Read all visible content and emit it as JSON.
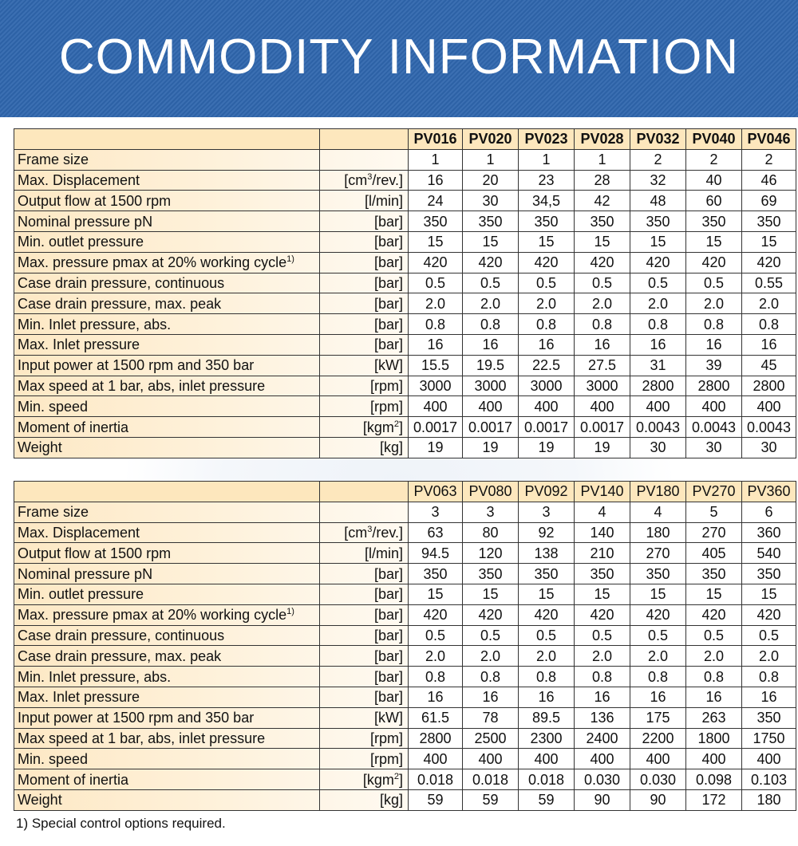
{
  "banner": {
    "title": "COMMODITY INFORMATION"
  },
  "table1": {
    "models": [
      "PV016",
      "PV020",
      "PV023",
      "PV028",
      "PV032",
      "PV040",
      "PV046"
    ],
    "rows": [
      {
        "label": "Frame size",
        "sup": "",
        "unit": "",
        "unit_sup": "",
        "unit_tail": "",
        "values": [
          "1",
          "1",
          "1",
          "1",
          "2",
          "2",
          "2"
        ]
      },
      {
        "label": "Max. Displacement",
        "sup": "",
        "unit": "[cm",
        "unit_sup": "3",
        "unit_tail": "/rev.]",
        "values": [
          "16",
          "20",
          "23",
          "28",
          "32",
          "40",
          "46"
        ]
      },
      {
        "label": "Output flow at 1500 rpm",
        "sup": "",
        "unit": "[l/min]",
        "unit_sup": "",
        "unit_tail": "",
        "values": [
          "24",
          "30",
          "34,5",
          "42",
          "48",
          "60",
          "69"
        ]
      },
      {
        "label": "Nominal pressure pN",
        "sup": "",
        "unit": "[bar]",
        "unit_sup": "",
        "unit_tail": "",
        "values": [
          "350",
          "350",
          "350",
          "350",
          "350",
          "350",
          "350"
        ]
      },
      {
        "label": "Min. outlet pressure",
        "sup": "",
        "unit": "[bar]",
        "unit_sup": "",
        "unit_tail": "",
        "values": [
          "15",
          "15",
          "15",
          "15",
          "15",
          "15",
          "15"
        ]
      },
      {
        "label": "Max. pressure pmax at 20% working cycle",
        "sup": "1)",
        "unit": "[bar]",
        "unit_sup": "",
        "unit_tail": "",
        "values": [
          "420",
          "420",
          "420",
          "420",
          "420",
          "420",
          "420"
        ]
      },
      {
        "label": "Case drain pressure, continuous",
        "sup": "",
        "unit": "[bar]",
        "unit_sup": "",
        "unit_tail": "",
        "values": [
          "0.5",
          "0.5",
          "0.5",
          "0.5",
          "0.5",
          "0.5",
          "0.55"
        ]
      },
      {
        "label": "Case drain pressure, max. peak",
        "sup": "",
        "unit": "[bar]",
        "unit_sup": "",
        "unit_tail": "",
        "values": [
          "2.0",
          "2.0",
          "2.0",
          "2.0",
          "2.0",
          "2.0",
          "2.0"
        ]
      },
      {
        "label": "Min. Inlet pressure, abs.",
        "sup": "",
        "unit": "[bar]",
        "unit_sup": "",
        "unit_tail": "",
        "values": [
          "0.8",
          "0.8",
          "0.8",
          "0.8",
          "0.8",
          "0.8",
          "0.8"
        ]
      },
      {
        "label": "Max. Inlet pressure",
        "sup": "",
        "unit": "[bar]",
        "unit_sup": "",
        "unit_tail": "",
        "values": [
          "16",
          "16",
          "16",
          "16",
          "16",
          "16",
          "16"
        ]
      },
      {
        "label": "Input power at 1500 rpm and 350 bar",
        "sup": "",
        "unit": "[kW]",
        "unit_sup": "",
        "unit_tail": "",
        "values": [
          "15.5",
          "19.5",
          "22.5",
          "27.5",
          "31",
          "39",
          "45"
        ]
      },
      {
        "label": "Max speed at 1 bar, abs, inlet pressure",
        "sup": "",
        "unit": "[rpm]",
        "unit_sup": "",
        "unit_tail": "",
        "values": [
          "3000",
          "3000",
          "3000",
          "3000",
          "2800",
          "2800",
          "2800"
        ]
      },
      {
        "label": "Min. speed",
        "sup": "",
        "unit": "[rpm]",
        "unit_sup": "",
        "unit_tail": "",
        "values": [
          "400",
          "400",
          "400",
          "400",
          "400",
          "400",
          "400"
        ]
      },
      {
        "label": "Moment of inertia",
        "sup": "",
        "unit": "[kgm",
        "unit_sup": "2",
        "unit_tail": "]",
        "values": [
          "0.0017",
          "0.0017",
          "0.0017",
          "0.0017",
          "0.0043",
          "0.0043",
          "0.0043"
        ]
      },
      {
        "label": "Weight",
        "sup": "",
        "unit": "[kg]",
        "unit_sup": "",
        "unit_tail": "",
        "values": [
          "19",
          "19",
          "19",
          "19",
          "30",
          "30",
          "30"
        ]
      }
    ]
  },
  "table2": {
    "models": [
      "PV063",
      "PV080",
      "PV092",
      "PV140",
      "PV180",
      "PV270",
      "PV360"
    ],
    "rows": [
      {
        "label": "Frame size",
        "sup": "",
        "unit": "",
        "unit_sup": "",
        "unit_tail": "",
        "values": [
          "3",
          "3",
          "3",
          "4",
          "4",
          "5",
          "6"
        ]
      },
      {
        "label": "Max. Displacement",
        "sup": "",
        "unit": "[cm",
        "unit_sup": "3",
        "unit_tail": "/rev.]",
        "values": [
          "63",
          "80",
          "92",
          "140",
          "180",
          "270",
          "360"
        ]
      },
      {
        "label": "Output flow at 1500 rpm",
        "sup": "",
        "unit": "[l/min]",
        "unit_sup": "",
        "unit_tail": "",
        "values": [
          "94.5",
          "120",
          "138",
          "210",
          "270",
          "405",
          "540"
        ]
      },
      {
        "label": "Nominal pressure pN",
        "sup": "",
        "unit": "[bar]",
        "unit_sup": "",
        "unit_tail": "",
        "values": [
          "350",
          "350",
          "350",
          "350",
          "350",
          "350",
          "350"
        ]
      },
      {
        "label": "Min. outlet pressure",
        "sup": "",
        "unit": "[bar]",
        "unit_sup": "",
        "unit_tail": "",
        "values": [
          "15",
          "15",
          "15",
          "15",
          "15",
          "15",
          "15"
        ]
      },
      {
        "label": "Max. pressure pmax at 20% working cycle",
        "sup": "1)",
        "unit": "[bar]",
        "unit_sup": "",
        "unit_tail": "",
        "values": [
          "420",
          "420",
          "420",
          "420",
          "420",
          "420",
          "420"
        ]
      },
      {
        "label": "Case drain pressure, continuous",
        "sup": "",
        "unit": "[bar]",
        "unit_sup": "",
        "unit_tail": "",
        "values": [
          "0.5",
          "0.5",
          "0.5",
          "0.5",
          "0.5",
          "0.5",
          "0.5"
        ]
      },
      {
        "label": "Case drain pressure, max. peak",
        "sup": "",
        "unit": "[bar]",
        "unit_sup": "",
        "unit_tail": "",
        "values": [
          "2.0",
          "2.0",
          "2.0",
          "2.0",
          "2.0",
          "2.0",
          "2.0"
        ]
      },
      {
        "label": "Min. Inlet pressure, abs.",
        "sup": "",
        "unit": "[bar]",
        "unit_sup": "",
        "unit_tail": "",
        "values": [
          "0.8",
          "0.8",
          "0.8",
          "0.8",
          "0.8",
          "0.8",
          "0.8"
        ]
      },
      {
        "label": "Max. Inlet pressure",
        "sup": "",
        "unit": "[bar]",
        "unit_sup": "",
        "unit_tail": "",
        "values": [
          "16",
          "16",
          "16",
          "16",
          "16",
          "16",
          "16"
        ]
      },
      {
        "label": "Input power at 1500 rpm and 350 bar",
        "sup": "",
        "unit": "[kW]",
        "unit_sup": "",
        "unit_tail": "",
        "values": [
          "61.5",
          "78",
          "89.5",
          "136",
          "175",
          "263",
          "350"
        ]
      },
      {
        "label": "Max speed at 1 bar, abs, inlet pressure",
        "sup": "",
        "unit": "[rpm]",
        "unit_sup": "",
        "unit_tail": "",
        "values": [
          "2800",
          "2500",
          "2300",
          "2400",
          "2200",
          "1800",
          "1750"
        ]
      },
      {
        "label": "Min. speed",
        "sup": "",
        "unit": "[rpm]",
        "unit_sup": "",
        "unit_tail": "",
        "values": [
          "400",
          "400",
          "400",
          "400",
          "400",
          "400",
          "400"
        ]
      },
      {
        "label": "Moment of inertia",
        "sup": "",
        "unit": "[kgm",
        "unit_sup": "2",
        "unit_tail": "]",
        "values": [
          "0.018",
          "0.018",
          "0.018",
          "0.030",
          "0.030",
          "0.098",
          "0.103"
        ]
      },
      {
        "label": "Weight",
        "sup": "",
        "unit": "[kg]",
        "unit_sup": "",
        "unit_tail": "",
        "values": [
          "59",
          "59",
          "59",
          "90",
          "90",
          "172",
          "180"
        ]
      }
    ]
  },
  "footnote": "1) Special control options required."
}
